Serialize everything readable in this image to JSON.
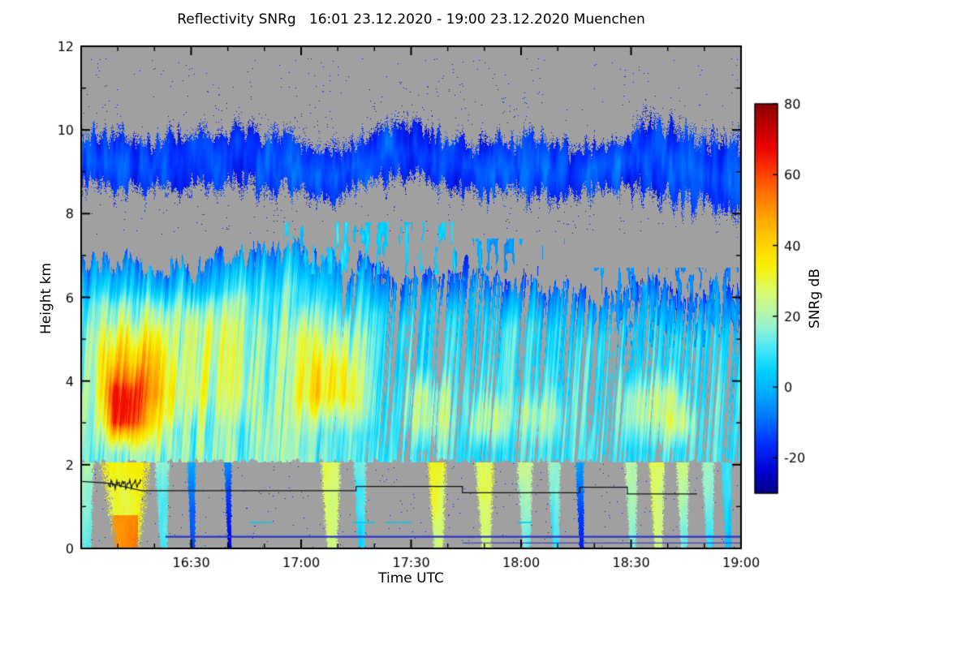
{
  "title": "Reflectivity SNRg   16:01 23.12.2020 - 19:00 23.12.2020 Muenchen",
  "chart_data": {
    "type": "heatmap",
    "title": "Reflectivity SNRg   16:01 23.12.2020 - 19:00 23.12.2020 Muenchen",
    "xlabel": "Time UTC",
    "ylabel": "Height km",
    "colorbar_label": "SNRg dB",
    "station": "Muenchen",
    "time_start": "16:01 23.12.2020",
    "time_end": "19:00 23.12.2020",
    "x_axis": {
      "start_minute": 0,
      "end_minute": 180,
      "major_ticks": [
        {
          "minute": 30,
          "label": "16:30"
        },
        {
          "minute": 60,
          "label": "17:00"
        },
        {
          "minute": 90,
          "label": "17:30"
        },
        {
          "minute": 120,
          "label": "18:00"
        },
        {
          "minute": 150,
          "label": "18:30"
        },
        {
          "minute": 180,
          "label": "19:00"
        }
      ],
      "minor_tick_minutes": [
        10,
        20,
        40,
        50,
        70,
        80,
        100,
        110,
        130,
        140,
        160,
        170
      ]
    },
    "y_axis": {
      "min": 0,
      "max": 12,
      "major_ticks": [
        0,
        2,
        4,
        6,
        8,
        10,
        12
      ],
      "minor_ticks": [
        1,
        3,
        5,
        7,
        9,
        11
      ]
    },
    "colorbar": {
      "min": -30,
      "max": 80,
      "ticks": [
        80,
        60,
        40,
        20,
        0,
        -20
      ]
    },
    "colors": {
      "nodata": "#a0a0a0",
      "frame": "#000000",
      "text": "#000000",
      "ground_line": "#2a35c8",
      "cyan_dash": "#00c8e8",
      "melting_line": "#151515"
    },
    "colormap_stops": [
      [
        -30,
        "#000082"
      ],
      [
        -24,
        "#0000d0"
      ],
      [
        -16,
        "#0030ff"
      ],
      [
        -8,
        "#007cff"
      ],
      [
        -2,
        "#00aaff"
      ],
      [
        4,
        "#00ceff"
      ],
      [
        10,
        "#3ce4f8"
      ],
      [
        16,
        "#8af0d8"
      ],
      [
        22,
        "#bcf6a0"
      ],
      [
        28,
        "#dcf960"
      ],
      [
        34,
        "#f6f100"
      ],
      [
        41,
        "#ffd000"
      ],
      [
        48,
        "#ffa400"
      ],
      [
        55,
        "#ff7000"
      ],
      [
        61,
        "#ff3800"
      ],
      [
        68,
        "#ea0000"
      ],
      [
        74,
        "#bc0000"
      ],
      [
        80,
        "#8c0000"
      ]
    ],
    "field_model": {
      "upper_band": {
        "center_km": 9.15,
        "center_wobble": 0.5,
        "halfwidth_km": 0.5,
        "halfwidth_var": 0.4,
        "widen_after_min": 150,
        "widen_km": 0.3,
        "value_db": [
          -26,
          -6
        ]
      },
      "cloud_top_km": [
        [
          0,
          7.05
        ],
        [
          25,
          6.8
        ],
        [
          48,
          7.1
        ],
        [
          60,
          7.35
        ],
        [
          72,
          6.7
        ],
        [
          88,
          6.5
        ],
        [
          108,
          6.75
        ],
        [
          124,
          6.3
        ],
        [
          140,
          6.15
        ],
        [
          154,
          6.35
        ],
        [
          166,
          5.9
        ],
        [
          180,
          6.05
        ]
      ],
      "cloud_base_km": 2.05,
      "gap_ramp": [
        [
          60,
          0.1
        ],
        [
          72,
          0.33
        ],
        [
          95,
          0.4
        ]
      ],
      "widespread_ramp": [
        [
          58,
          9
        ],
        [
          72,
          4
        ],
        [
          90,
          0
        ]
      ],
      "cores": [
        [
          2,
          26,
          2.2,
          5.4,
          16,
          5,
          0.8
        ],
        [
          5,
          20,
          2.3,
          4.5,
          15,
          4,
          0.7
        ],
        [
          7,
          16,
          2.5,
          4.0,
          12,
          3,
          0.5
        ],
        [
          0,
          50,
          2.8,
          6.2,
          12,
          8,
          0.9
        ],
        [
          54,
          82,
          2.7,
          5.9,
          14,
          6,
          0.9
        ],
        [
          60,
          76,
          3.0,
          5.0,
          8,
          5,
          0.7
        ],
        [
          86,
          104,
          2.3,
          4.4,
          13,
          5,
          0.7
        ],
        [
          104,
          118,
          2.3,
          3.8,
          13,
          4,
          0.6
        ],
        [
          116,
          134,
          2.4,
          4.0,
          10,
          5,
          0.7
        ],
        [
          144,
          168,
          2.3,
          4.4,
          13,
          5,
          0.8
        ],
        [
          158,
          170,
          2.4,
          3.5,
          7,
          4,
          0.5
        ]
      ],
      "streaks": [
        [
          1,
          2.5,
          22,
          0
        ],
        [
          12,
          6.5,
          34,
          20
        ],
        [
          22,
          2,
          18,
          0
        ],
        [
          30,
          1.2,
          0,
          0
        ],
        [
          40,
          1,
          -8,
          0
        ],
        [
          68,
          2.8,
          28,
          0
        ],
        [
          76,
          1.8,
          14,
          0
        ],
        [
          97,
          2.6,
          30,
          0
        ],
        [
          110,
          2.6,
          30,
          0
        ],
        [
          121,
          2.2,
          22,
          0
        ],
        [
          129,
          1.8,
          18,
          0
        ],
        [
          136,
          1.2,
          -4,
          0
        ],
        [
          150,
          1.8,
          22,
          0
        ],
        [
          157,
          2.2,
          28,
          0
        ],
        [
          164,
          1.8,
          24,
          0
        ],
        [
          171,
          1.8,
          18,
          0
        ],
        [
          176,
          1.5,
          10,
          0
        ]
      ],
      "patches": [
        [
          55,
          102,
          6.55,
          7.8,
          2,
          0.62
        ],
        [
          102,
          132,
          6.4,
          7.4,
          -6,
          0.66
        ],
        [
          140,
          180,
          4.8,
          6.7,
          -8,
          0.6
        ]
      ]
    },
    "melting_layer_line": {
      "points": [
        [
          0,
          1.6
        ],
        [
          7.5,
          1.56
        ],
        [
          16.5,
          1.38
        ],
        [
          75,
          1.38
        ],
        [
          75,
          1.48
        ],
        [
          104,
          1.48
        ],
        [
          104,
          1.33
        ],
        [
          136,
          1.33
        ],
        [
          136,
          1.46
        ],
        [
          149,
          1.46
        ],
        [
          149,
          1.3
        ],
        [
          168,
          1.3
        ]
      ],
      "wiggle": {
        "t0": 7.5,
        "t1": 16.5,
        "h": 1.54,
        "amp_km": 0.07
      }
    },
    "ground_lines": [
      {
        "h": 0.28,
        "t0": 23,
        "t1": 180,
        "w": 2.2
      },
      {
        "h": 0.13,
        "t0": 104,
        "t1": 180,
        "w": 1
      }
    ],
    "cyan_dashes": {
      "h": 0.62,
      "segments": [
        [
          46,
          52
        ],
        [
          74,
          80
        ],
        [
          83,
          90
        ],
        [
          119,
          123
        ]
      ]
    }
  }
}
